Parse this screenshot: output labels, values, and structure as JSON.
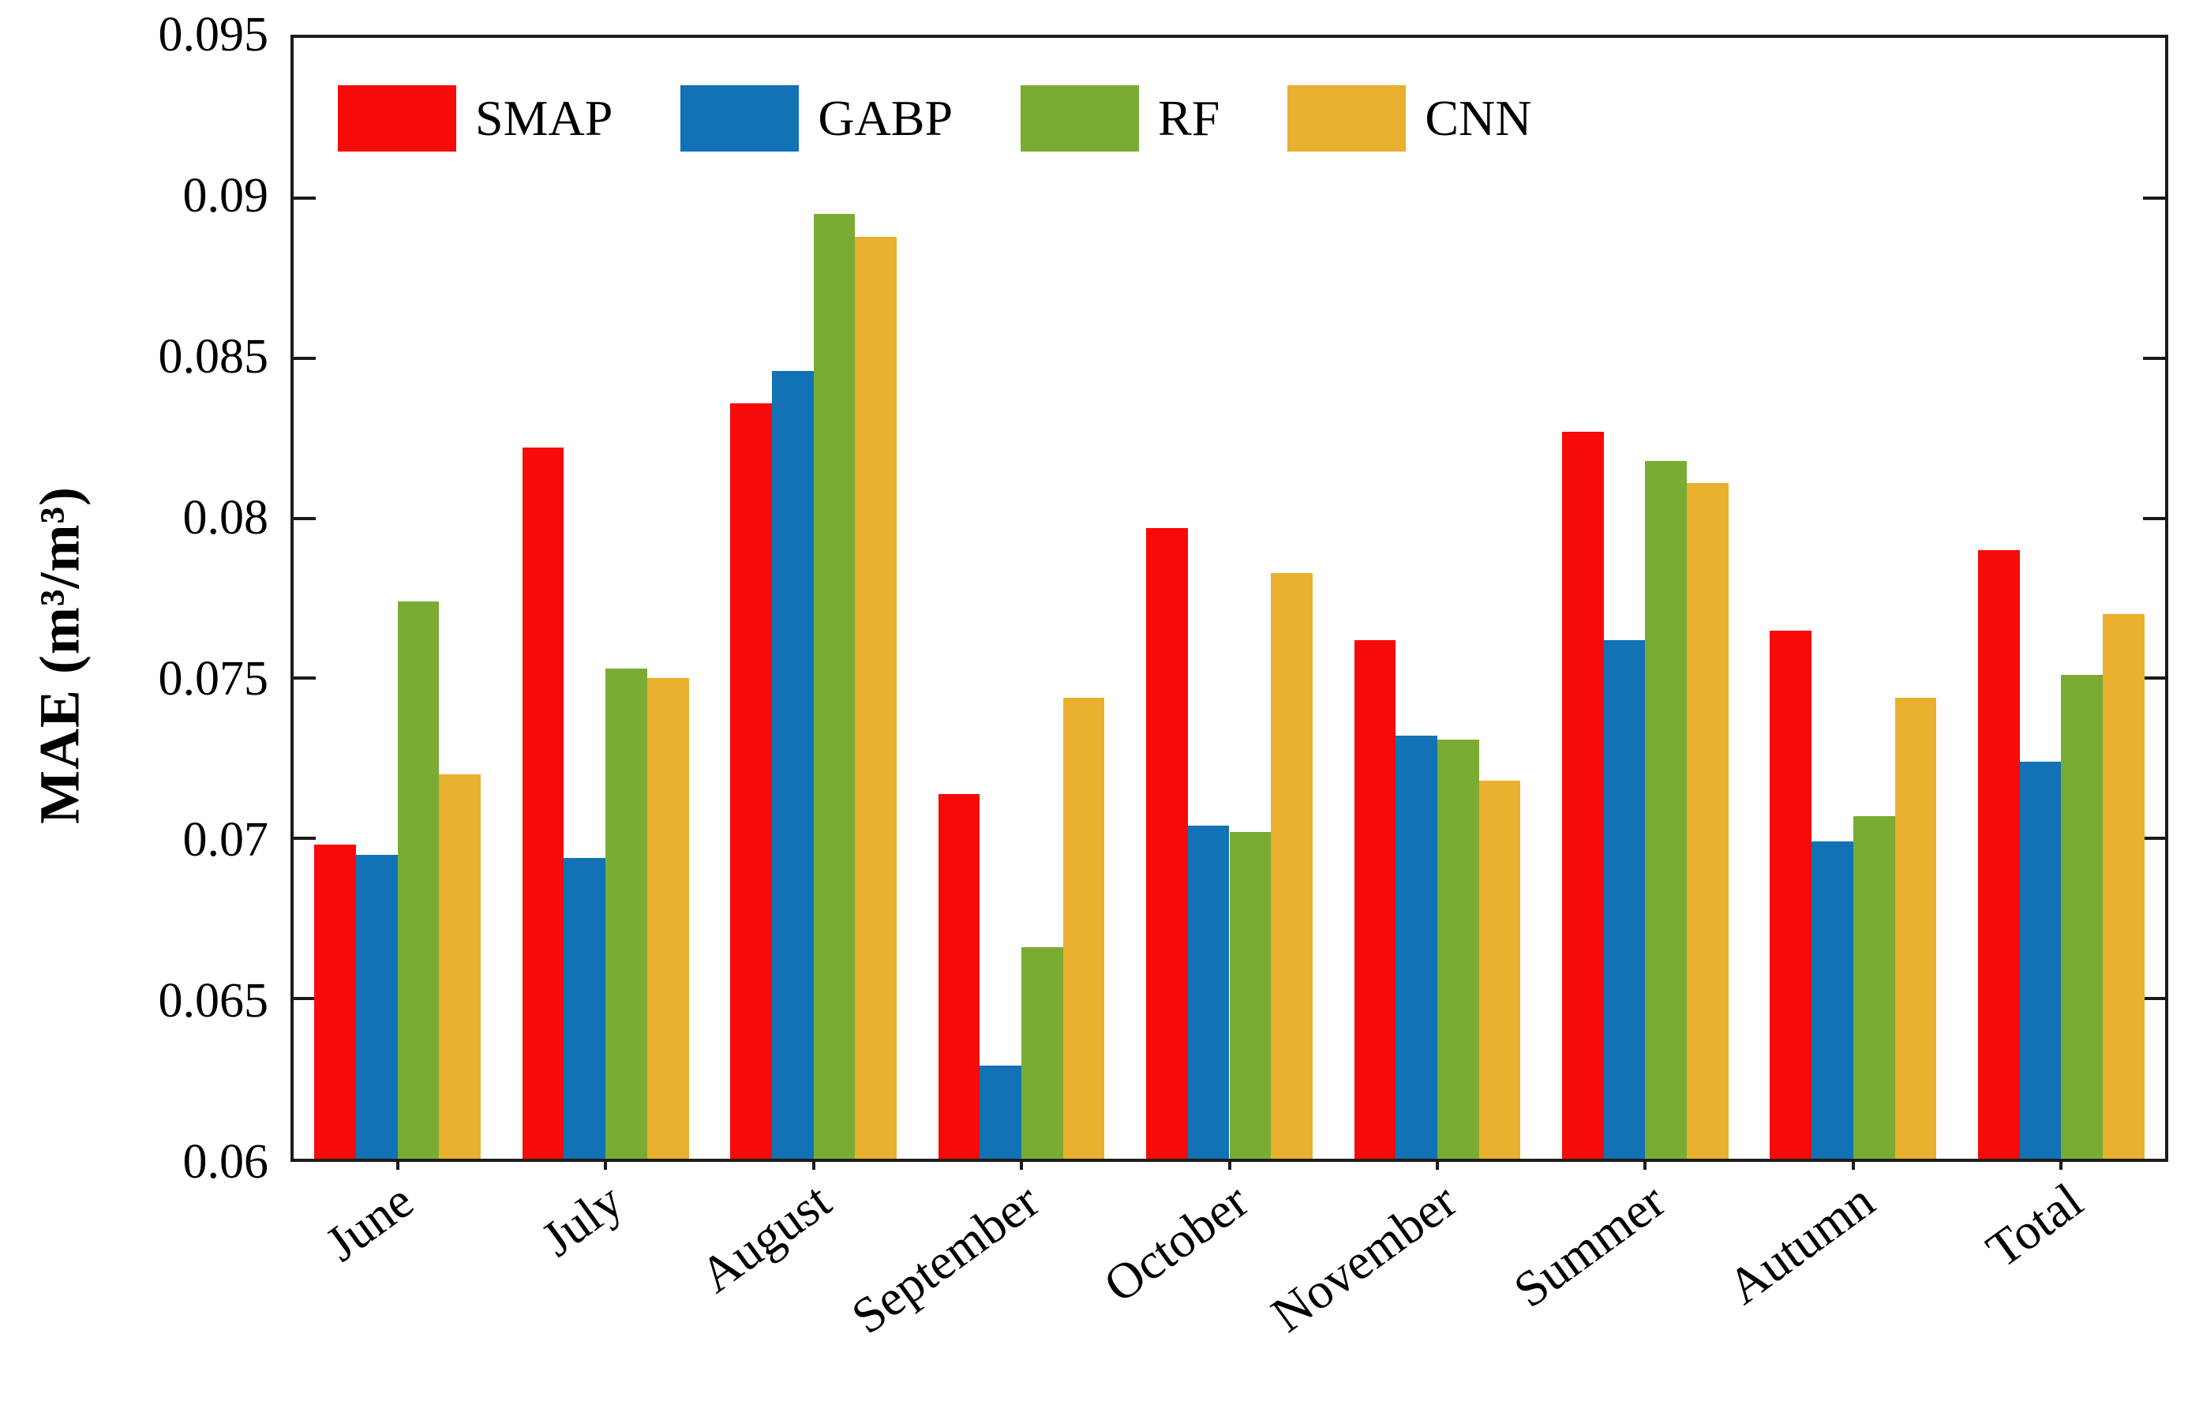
{
  "chart_data": {
    "type": "bar",
    "title": "",
    "xlabel": "",
    "ylabel": "MAE (m³/m³)",
    "ylim": [
      0.06,
      0.095
    ],
    "grid": false,
    "legend_position": "top-left-inside",
    "axis_color": "#1a1a1a",
    "categories": [
      "June",
      "July",
      "August",
      "September",
      "October",
      "November",
      "Summer",
      "Autumn",
      "Total"
    ],
    "yticks": [
      {
        "value": 0.06,
        "label": "0.06"
      },
      {
        "value": 0.065,
        "label": "0.065"
      },
      {
        "value": 0.07,
        "label": "0.07"
      },
      {
        "value": 0.075,
        "label": "0.075"
      },
      {
        "value": 0.08,
        "label": "0.08"
      },
      {
        "value": 0.085,
        "label": "0.085"
      },
      {
        "value": 0.09,
        "label": "0.09"
      },
      {
        "value": 0.095,
        "label": "0.095"
      }
    ],
    "series": [
      {
        "name": "SMAP",
        "color": "#F90A0A",
        "values": [
          0.0698,
          0.0822,
          0.0836,
          0.0714,
          0.0797,
          0.0762,
          0.0827,
          0.0765,
          0.079
        ]
      },
      {
        "name": "GABP",
        "color": "#1272B5",
        "values": [
          0.0695,
          0.0694,
          0.0846,
          0.0629,
          0.0704,
          0.0732,
          0.0762,
          0.0699,
          0.0724
        ]
      },
      {
        "name": "RF",
        "color": "#7AAC33",
        "values": [
          0.0774,
          0.0753,
          0.0895,
          0.0666,
          0.0702,
          0.0731,
          0.0818,
          0.0707,
          0.0751
        ]
      },
      {
        "name": "CNN",
        "color": "#E8B02E",
        "values": [
          0.072,
          0.075,
          0.0888,
          0.0744,
          0.0783,
          0.0718,
          0.0811,
          0.0744,
          0.077
        ]
      }
    ]
  }
}
